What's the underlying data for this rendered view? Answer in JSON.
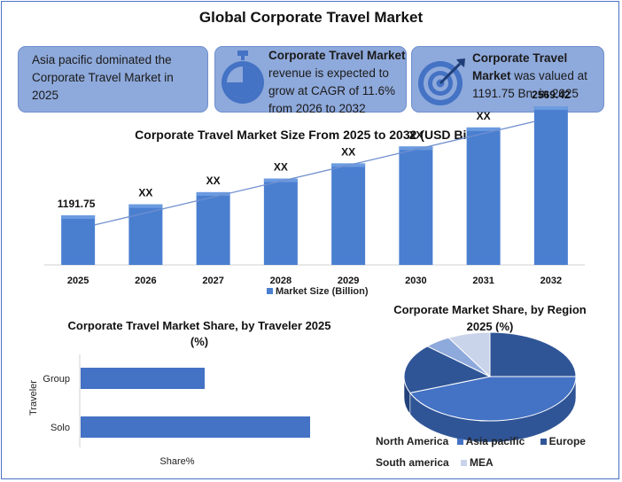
{
  "header": {
    "title": "Global Corporate Travel Market"
  },
  "cards": [
    {
      "text": "Asia pacific dominated the Corporate Travel Market in 2025",
      "icon": "none"
    },
    {
      "bold": "Corporate Travel Market",
      "text": " revenue is expected to grow at CAGR of 11.6% from 2026 to 2032",
      "icon": "stopwatch-icon"
    },
    {
      "bold": "Corporate Travel Market",
      "text": " was valued at 1191.75 Bn. in 2025",
      "icon": "target-icon"
    }
  ],
  "colors": {
    "bar": "#4a7fd0",
    "bar_top": "#6b9be0",
    "card": "#8ea9db",
    "hbar": "#4472c4",
    "trend": "#6f8fcf"
  },
  "chart_data": [
    {
      "type": "bar",
      "title": "Corporate Travel Market Size From 2025 to 2032 (USD Billion)",
      "categories": [
        "2025",
        "2026",
        "2027",
        "2028",
        "2029",
        "2030",
        "2031",
        "2032"
      ],
      "values": [
        1191.75,
        1330,
        1484,
        1656,
        1848,
        2062,
        2302,
        2569.42
      ],
      "data_labels": [
        "1191.75",
        "XX",
        "XX",
        "XX",
        "XX",
        "XX",
        "XX",
        "2569.42"
      ],
      "series": [
        {
          "name": "Market Size (Billion)"
        }
      ],
      "legend": "bottom",
      "grid": false
    },
    {
      "type": "bar",
      "orientation": "horizontal",
      "title": "Corporate Travel Market Share, by Traveler  2025 (%)",
      "categories": [
        "Group",
        "Solo"
      ],
      "values": [
        40,
        74
      ],
      "xlabel": "Share%",
      "ylabel": "Traveler",
      "grid": false
    },
    {
      "type": "pie",
      "title": "Corporate Market Share, by Region 2025 (%)",
      "categories": [
        "North America",
        "Asia pacific",
        "Europe",
        "South america",
        "MEA"
      ],
      "values": [
        25,
        44,
        18,
        5,
        8
      ],
      "colors": [
        "#2f5596",
        "#4472c4",
        "#2f5596",
        "#8ea9db",
        "#c9d3ea"
      ],
      "legend": "bottom"
    }
  ]
}
